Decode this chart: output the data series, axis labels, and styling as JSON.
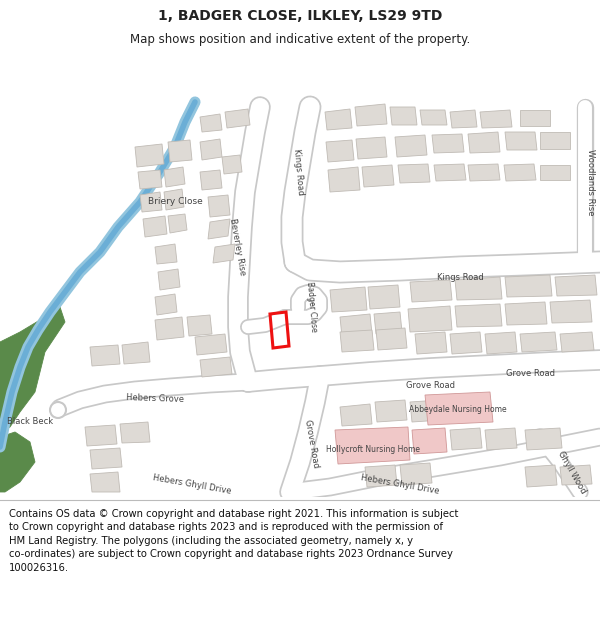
{
  "title": "1, BADGER CLOSE, ILKLEY, LS29 9TD",
  "subtitle": "Map shows position and indicative extent of the property.",
  "footer": "Contains OS data © Crown copyright and database right 2021. This information is subject to Crown copyright and database rights 2023 and is reproduced with the permission of HM Land Registry. The polygons (including the associated geometry, namely x, y co-ordinates) are subject to Crown copyright and database rights 2023 Ordnance Survey 100026316.",
  "title_fontsize": 10,
  "subtitle_fontsize": 8.5,
  "footer_fontsize": 7.2,
  "map_bg": "#f5f3f0",
  "road_color": "#ffffff",
  "road_edge_color": "#c8c8c8",
  "building_color": "#dedad5",
  "building_edge_color": "#c0bbb5",
  "green_color": "#5a8a4a",
  "water_color": "#92c5de",
  "red_polygon_color": "#ee1111",
  "pink_building_color": "#f0c8c8",
  "text_color": "#222222",
  "road_label_color": "#444444",
  "label_fontsize": 6.0,
  "footer_line_color": "#bbbbbb"
}
